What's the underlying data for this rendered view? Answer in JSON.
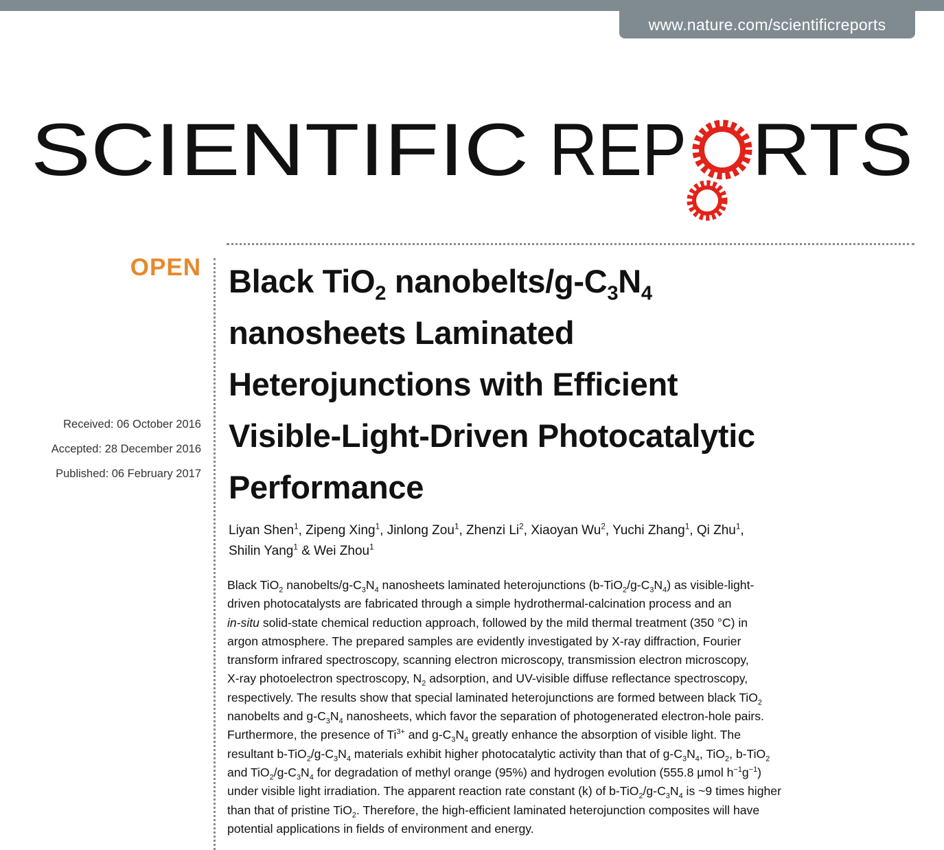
{
  "header": {
    "url": "www.nature.com/scientificreports"
  },
  "logo": {
    "light": "SCIENTIFIC",
    "bold_start": "REP",
    "bold_end": "RTS"
  },
  "sidebar": {
    "badge": "OPEN",
    "dates": [
      "Received: 06 October 2016",
      "Accepted: 28 December 2016",
      "Published: 06 February 2017"
    ]
  },
  "article": {
    "title_lines": [
      [
        "Black TiO",
        {
          "sub": "2"
        },
        " nanobelts/g-C",
        {
          "sub": "3"
        },
        "N",
        {
          "sub": "4"
        }
      ],
      [
        "nanosheets Laminated"
      ],
      [
        "Heterojunctions with Efficient"
      ],
      [
        "Visible-Light-Driven Photocatalytic"
      ],
      [
        "Performance"
      ]
    ],
    "author_lines": [
      [
        "Liyan Shen",
        {
          "sup": "1"
        },
        ", Zipeng Xing",
        {
          "sup": "1"
        },
        ", Jinlong Zou",
        {
          "sup": "1"
        },
        ", Zhenzi Li",
        {
          "sup": "2"
        },
        ", Xiaoyan Wu",
        {
          "sup": "2"
        },
        ", Yuchi Zhang",
        {
          "sup": "1"
        },
        ", Qi Zhu",
        {
          "sup": "1"
        },
        ","
      ],
      [
        "Shilin Yang",
        {
          "sup": "1"
        },
        " & Wei Zhou",
        {
          "sup": "1"
        }
      ]
    ],
    "abstract_lines": [
      [
        "Black TiO",
        {
          "sub": "2"
        },
        " nanobelts/g-C",
        {
          "sub": "3"
        },
        "N",
        {
          "sub": "4"
        },
        " nanosheets laminated heterojunctions (b-TiO",
        {
          "sub": "2"
        },
        "/g-C",
        {
          "sub": "3"
        },
        "N",
        {
          "sub": "4"
        },
        ") as visible-light-"
      ],
      [
        "driven photocatalysts are fabricated through a simple hydrothermal-calcination process and an"
      ],
      [
        {
          "i": "in-situ"
        },
        " solid-state chemical reduction approach, followed by the mild thermal treatment (350 °C) in"
      ],
      [
        "argon atmosphere. The prepared samples are evidently investigated by X-ray diffraction, Fourier"
      ],
      [
        "transform infrared spectroscopy, scanning electron microscopy, transmission electron microscopy,"
      ],
      [
        "X-ray photoelectron spectroscopy, N",
        {
          "sub": "2"
        },
        " adsorption, and UV-visible diffuse reflectance spectroscopy,"
      ],
      [
        "respectively. The results show that special laminated heterojunctions are formed between black TiO",
        {
          "sub": "2"
        }
      ],
      [
        "nanobelts and g-C",
        {
          "sub": "3"
        },
        "N",
        {
          "sub": "4"
        },
        " nanosheets, which favor the separation of photogenerated electron-hole pairs."
      ],
      [
        "Furthermore, the presence of Ti",
        {
          "sup": "3+"
        },
        " and g-C",
        {
          "sub": "3"
        },
        "N",
        {
          "sub": "4"
        },
        " greatly enhance the absorption of visible light. The"
      ],
      [
        "resultant b-TiO",
        {
          "sub": "2"
        },
        "/g-C",
        {
          "sub": "3"
        },
        "N",
        {
          "sub": "4"
        },
        " materials exhibit higher photocatalytic activity than that of g-C",
        {
          "sub": "3"
        },
        "N",
        {
          "sub": "4"
        },
        ", TiO",
        {
          "sub": "2"
        },
        ", b-TiO",
        {
          "sub": "2"
        }
      ],
      [
        "and TiO",
        {
          "sub": "2"
        },
        "/g-C",
        {
          "sub": "3"
        },
        "N",
        {
          "sub": "4"
        },
        " for degradation of methyl orange (95%) and hydrogen evolution (555.8 μmol h",
        {
          "sup": "−1"
        },
        "g",
        {
          "sup": "−1"
        },
        ")"
      ],
      [
        "under visible light irradiation. The apparent reaction rate constant (k) of b-TiO",
        {
          "sub": "2"
        },
        "/g-C",
        {
          "sub": "3"
        },
        "N",
        {
          "sub": "4"
        },
        " is ~9 times higher"
      ],
      [
        "than that of pristine TiO",
        {
          "sub": "2"
        },
        ". Therefore, the high-efficient laminated heterojunction composites will have"
      ],
      [
        "potential applications in fields of environment and energy."
      ]
    ]
  }
}
